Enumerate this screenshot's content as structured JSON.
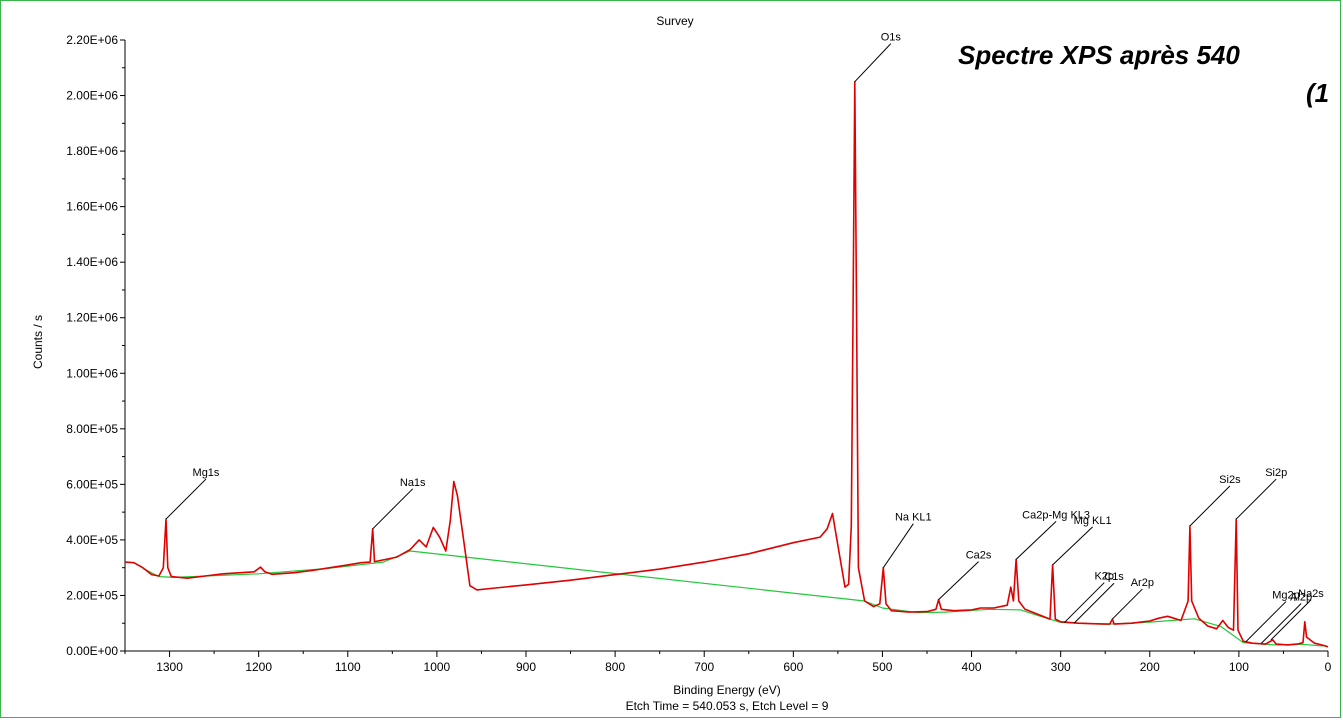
{
  "overlay": {
    "line1": "Spectre XPS après 540",
    "line2": "(1"
  },
  "chart_data": {
    "type": "line",
    "title": "Survey",
    "xlabel": "Binding Energy (eV)",
    "subtitle": "Etch Time = 540.053 s, Etch Level = 9",
    "ylabel": "Counts / s",
    "xlim": [
      1350,
      0
    ],
    "ylim": [
      0,
      2200000
    ],
    "x_ticks": [
      1300,
      1200,
      1100,
      1000,
      900,
      800,
      700,
      600,
      500,
      400,
      300,
      200,
      100,
      0
    ],
    "x_tick_labels": [
      "1300",
      "1200",
      "1100",
      "1000",
      "900",
      "800",
      "700",
      "600",
      "500",
      "400",
      "300",
      "200",
      "100",
      "0"
    ],
    "y_ticks": [
      0,
      200000,
      400000,
      600000,
      800000,
      1000000,
      1200000,
      1400000,
      1600000,
      1800000,
      2000000,
      2200000
    ],
    "y_tick_labels": [
      "0.00E+00",
      "2.00E+05",
      "4.00E+05",
      "6.00E+05",
      "8.00E+05",
      "1.00E+06",
      "1.20E+06",
      "1.40E+06",
      "1.60E+06",
      "1.80E+06",
      "2.00E+06",
      "2.20E+06"
    ],
    "series": [
      {
        "color": "#e00000",
        "points": [
          [
            1350,
            320000
          ],
          [
            1340,
            318000
          ],
          [
            1330,
            300000
          ],
          [
            1320,
            275000
          ],
          [
            1312,
            270000
          ],
          [
            1307,
            300000
          ],
          [
            1304,
            475000
          ],
          [
            1302,
            300000
          ],
          [
            1298,
            268000
          ],
          [
            1280,
            262000
          ],
          [
            1260,
            270000
          ],
          [
            1240,
            278000
          ],
          [
            1220,
            282000
          ],
          [
            1205,
            285000
          ],
          [
            1198,
            302000
          ],
          [
            1193,
            285000
          ],
          [
            1185,
            276000
          ],
          [
            1160,
            282000
          ],
          [
            1140,
            290000
          ],
          [
            1120,
            300000
          ],
          [
            1100,
            310000
          ],
          [
            1085,
            318000
          ],
          [
            1075,
            320000
          ],
          [
            1072,
            440000
          ],
          [
            1070,
            322000
          ],
          [
            1060,
            328000
          ],
          [
            1045,
            338000
          ],
          [
            1030,
            365000
          ],
          [
            1020,
            400000
          ],
          [
            1012,
            375000
          ],
          [
            1004,
            445000
          ],
          [
            997,
            410000
          ],
          [
            990,
            360000
          ],
          [
            985,
            470000
          ],
          [
            981,
            610000
          ],
          [
            977,
            560000
          ],
          [
            970,
            400000
          ],
          [
            963,
            235000
          ],
          [
            955,
            220000
          ],
          [
            940,
            225000
          ],
          [
            900,
            238000
          ],
          [
            850,
            255000
          ],
          [
            800,
            275000
          ],
          [
            750,
            295000
          ],
          [
            700,
            320000
          ],
          [
            650,
            350000
          ],
          [
            600,
            390000
          ],
          [
            570,
            410000
          ],
          [
            562,
            440000
          ],
          [
            556,
            495000
          ],
          [
            550,
            380000
          ],
          [
            542,
            230000
          ],
          [
            538,
            240000
          ],
          [
            535,
            450000
          ],
          [
            533,
            1200000
          ],
          [
            531,
            2050000
          ],
          [
            529,
            1200000
          ],
          [
            527,
            300000
          ],
          [
            520,
            180000
          ],
          [
            510,
            160000
          ],
          [
            503,
            170000
          ],
          [
            499,
            300000
          ],
          [
            496,
            170000
          ],
          [
            490,
            145000
          ],
          [
            470,
            140000
          ],
          [
            450,
            142000
          ],
          [
            440,
            150000
          ],
          [
            437,
            185000
          ],
          [
            434,
            150000
          ],
          [
            420,
            145000
          ],
          [
            400,
            148000
          ],
          [
            390,
            155000
          ],
          [
            375,
            155000
          ],
          [
            360,
            165000
          ],
          [
            356,
            230000
          ],
          [
            353,
            180000
          ],
          [
            350,
            330000
          ],
          [
            347,
            180000
          ],
          [
            340,
            150000
          ],
          [
            320,
            125000
          ],
          [
            312,
            115000
          ],
          [
            309,
            310000
          ],
          [
            306,
            115000
          ],
          [
            300,
            105000
          ],
          [
            280,
            100000
          ],
          [
            260,
            98000
          ],
          [
            245,
            97000
          ],
          [
            242,
            115000
          ],
          [
            240,
            97000
          ],
          [
            220,
            100000
          ],
          [
            200,
            108000
          ],
          [
            190,
            118000
          ],
          [
            180,
            125000
          ],
          [
            175,
            120000
          ],
          [
            165,
            110000
          ],
          [
            157,
            180000
          ],
          [
            155,
            450000
          ],
          [
            153,
            180000
          ],
          [
            145,
            118000
          ],
          [
            135,
            90000
          ],
          [
            125,
            80000
          ],
          [
            118,
            110000
          ],
          [
            112,
            85000
          ],
          [
            106,
            75000
          ],
          [
            103,
            475000
          ],
          [
            101,
            75000
          ],
          [
            95,
            35000
          ],
          [
            85,
            28000
          ],
          [
            70,
            25000
          ],
          [
            62,
            40000
          ],
          [
            58,
            25000
          ],
          [
            45,
            22000
          ],
          [
            35,
            25000
          ],
          [
            28,
            30000
          ],
          [
            26,
            105000
          ],
          [
            24,
            50000
          ],
          [
            15,
            28000
          ],
          [
            5,
            20000
          ],
          [
            0,
            15000
          ]
        ]
      },
      {
        "color": "#22c83a",
        "points": [
          [
            1330,
            298000
          ],
          [
            1312,
            268000
          ],
          [
            1295,
            265000
          ],
          [
            1200,
            278000
          ],
          [
            1120,
            298000
          ],
          [
            1060,
            320000
          ],
          [
            1030,
            360000
          ],
          [
            520,
            180000
          ],
          [
            500,
            155000
          ],
          [
            460,
            138000
          ],
          [
            430,
            140000
          ],
          [
            380,
            150000
          ],
          [
            345,
            148000
          ],
          [
            320,
            122000
          ],
          [
            300,
            103000
          ],
          [
            250,
            96000
          ],
          [
            200,
            104000
          ],
          [
            150,
            116000
          ],
          [
            120,
            88000
          ],
          [
            95,
            30000
          ],
          [
            60,
            22000
          ],
          [
            30,
            24000
          ],
          [
            5,
            18000
          ]
        ]
      }
    ],
    "annotations": [
      {
        "text": "O1s",
        "x": 531,
        "y": 2050000
      },
      {
        "text": "Mg1s",
        "x": 1304,
        "y": 475000
      },
      {
        "text": "Na1s",
        "x": 1072,
        "y": 440000
      },
      {
        "text": "Na KL1",
        "x": 499,
        "y": 300000
      },
      {
        "text": "Ca2s",
        "x": 437,
        "y": 185000
      },
      {
        "text": "Ca2p-Mg KL3",
        "x": 350,
        "y": 330000
      },
      {
        "text": "Mg KL1",
        "x": 309,
        "y": 310000
      },
      {
        "text": "K2p",
        "x": 296,
        "y": 102000
      },
      {
        "text": "C1s",
        "x": 285,
        "y": 100000
      },
      {
        "text": "Ar2p",
        "x": 242,
        "y": 115000
      },
      {
        "text": "Si2s",
        "x": 155,
        "y": 450000
      },
      {
        "text": "Si2p",
        "x": 103,
        "y": 475000
      },
      {
        "text": "Mg2p",
        "x": 92,
        "y": 34000
      },
      {
        "text": "Na2s",
        "x": 64,
        "y": 40000
      },
      {
        "text": "Al2p",
        "x": 75,
        "y": 27000
      }
    ]
  }
}
